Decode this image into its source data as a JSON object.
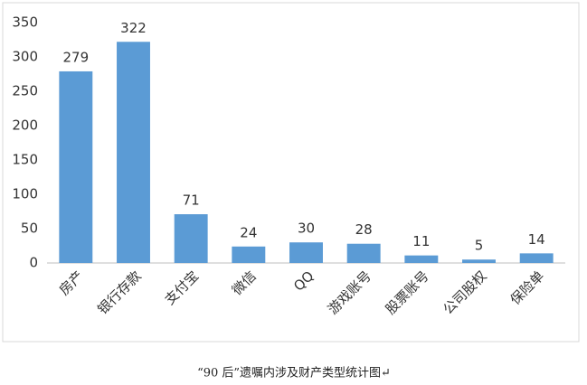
{
  "chart_data": {
    "type": "bar",
    "categories": [
      "房产",
      "银行存款",
      "支付宝",
      "微信",
      "QQ",
      "游戏账号",
      "股票账号",
      "公司股权",
      "保险单"
    ],
    "values": [
      279,
      322,
      71,
      24,
      30,
      28,
      11,
      5,
      14
    ],
    "color": "#5b9bd5",
    "ylim": [
      0,
      350
    ],
    "yticks": [
      0,
      50,
      100,
      150,
      200,
      250,
      300,
      350
    ],
    "grid": false,
    "caption": "“90 后”遗嘱内涉及财产类型统计图↵"
  }
}
